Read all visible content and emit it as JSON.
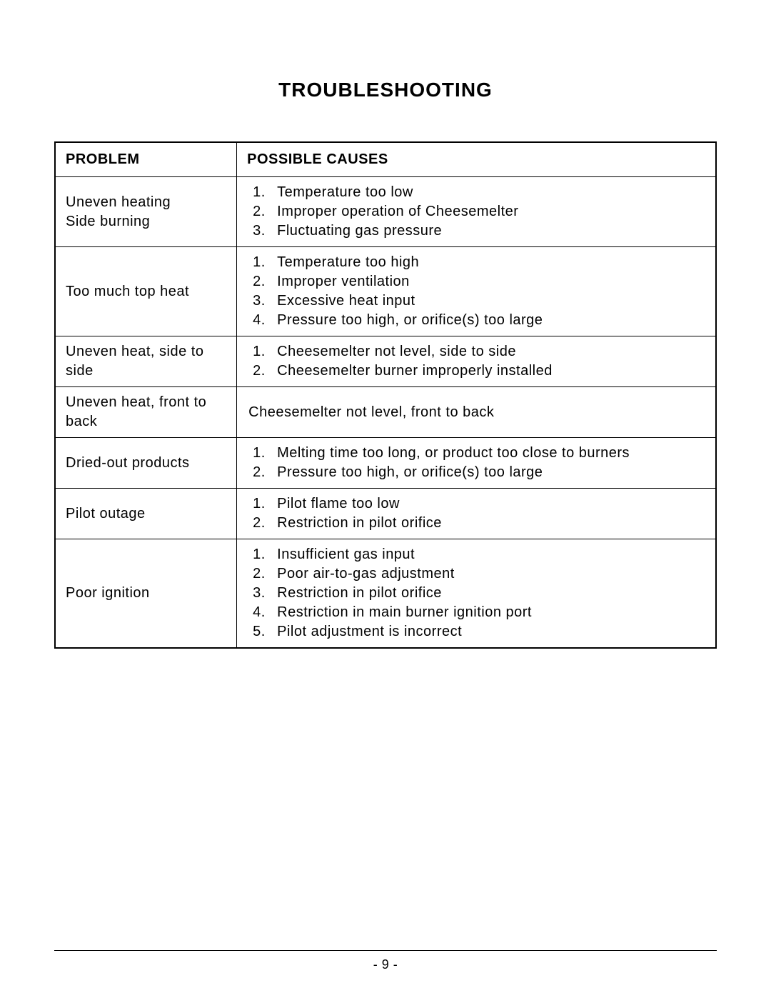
{
  "title": "TROUBLESHOOTING",
  "columns": {
    "problem": "PROBLEM",
    "causes": "POSSIBLE  CAUSES"
  },
  "rows": [
    {
      "problem": "Uneven heating\nSide burning",
      "causes": [
        "Temperature too low",
        "Improper operation of Cheesemelter",
        "Fluctuating gas pressure"
      ]
    },
    {
      "problem": "Too much top heat",
      "causes": [
        "Temperature too high",
        "Improper ventilation",
        "Excessive heat input",
        "Pressure too high, or orifice(s) too large"
      ]
    },
    {
      "problem": "Uneven heat, side to side",
      "causes": [
        "Cheesemelter not level, side to side",
        "Cheesemelter burner improperly installed"
      ]
    },
    {
      "problem": "Uneven heat, front to back",
      "causes_single": "Cheesemelter not level, front to back"
    },
    {
      "problem": "Dried-out products",
      "causes": [
        "Melting time too long, or product too close to burners",
        "Pressure too high, or orifice(s) too large"
      ]
    },
    {
      "problem": "Pilot outage",
      "causes": [
        "Pilot flame too low",
        "Restriction in pilot orifice"
      ]
    },
    {
      "problem": "Poor ignition",
      "causes": [
        "Insufficient gas input",
        "Poor air-to-gas adjustment",
        "Restriction in pilot orifice",
        "Restriction in main burner ignition port",
        "Pilot adjustment is incorrect"
      ]
    }
  ],
  "page_number": "- 9 -",
  "style": {
    "background_color": "#ffffff",
    "text_color": "#000000",
    "border_color": "#000000",
    "title_fontsize": 28,
    "cell_fontsize": 20,
    "footer_fontsize": 18,
    "font_family": "Arial, Helvetica, sans-serif"
  }
}
